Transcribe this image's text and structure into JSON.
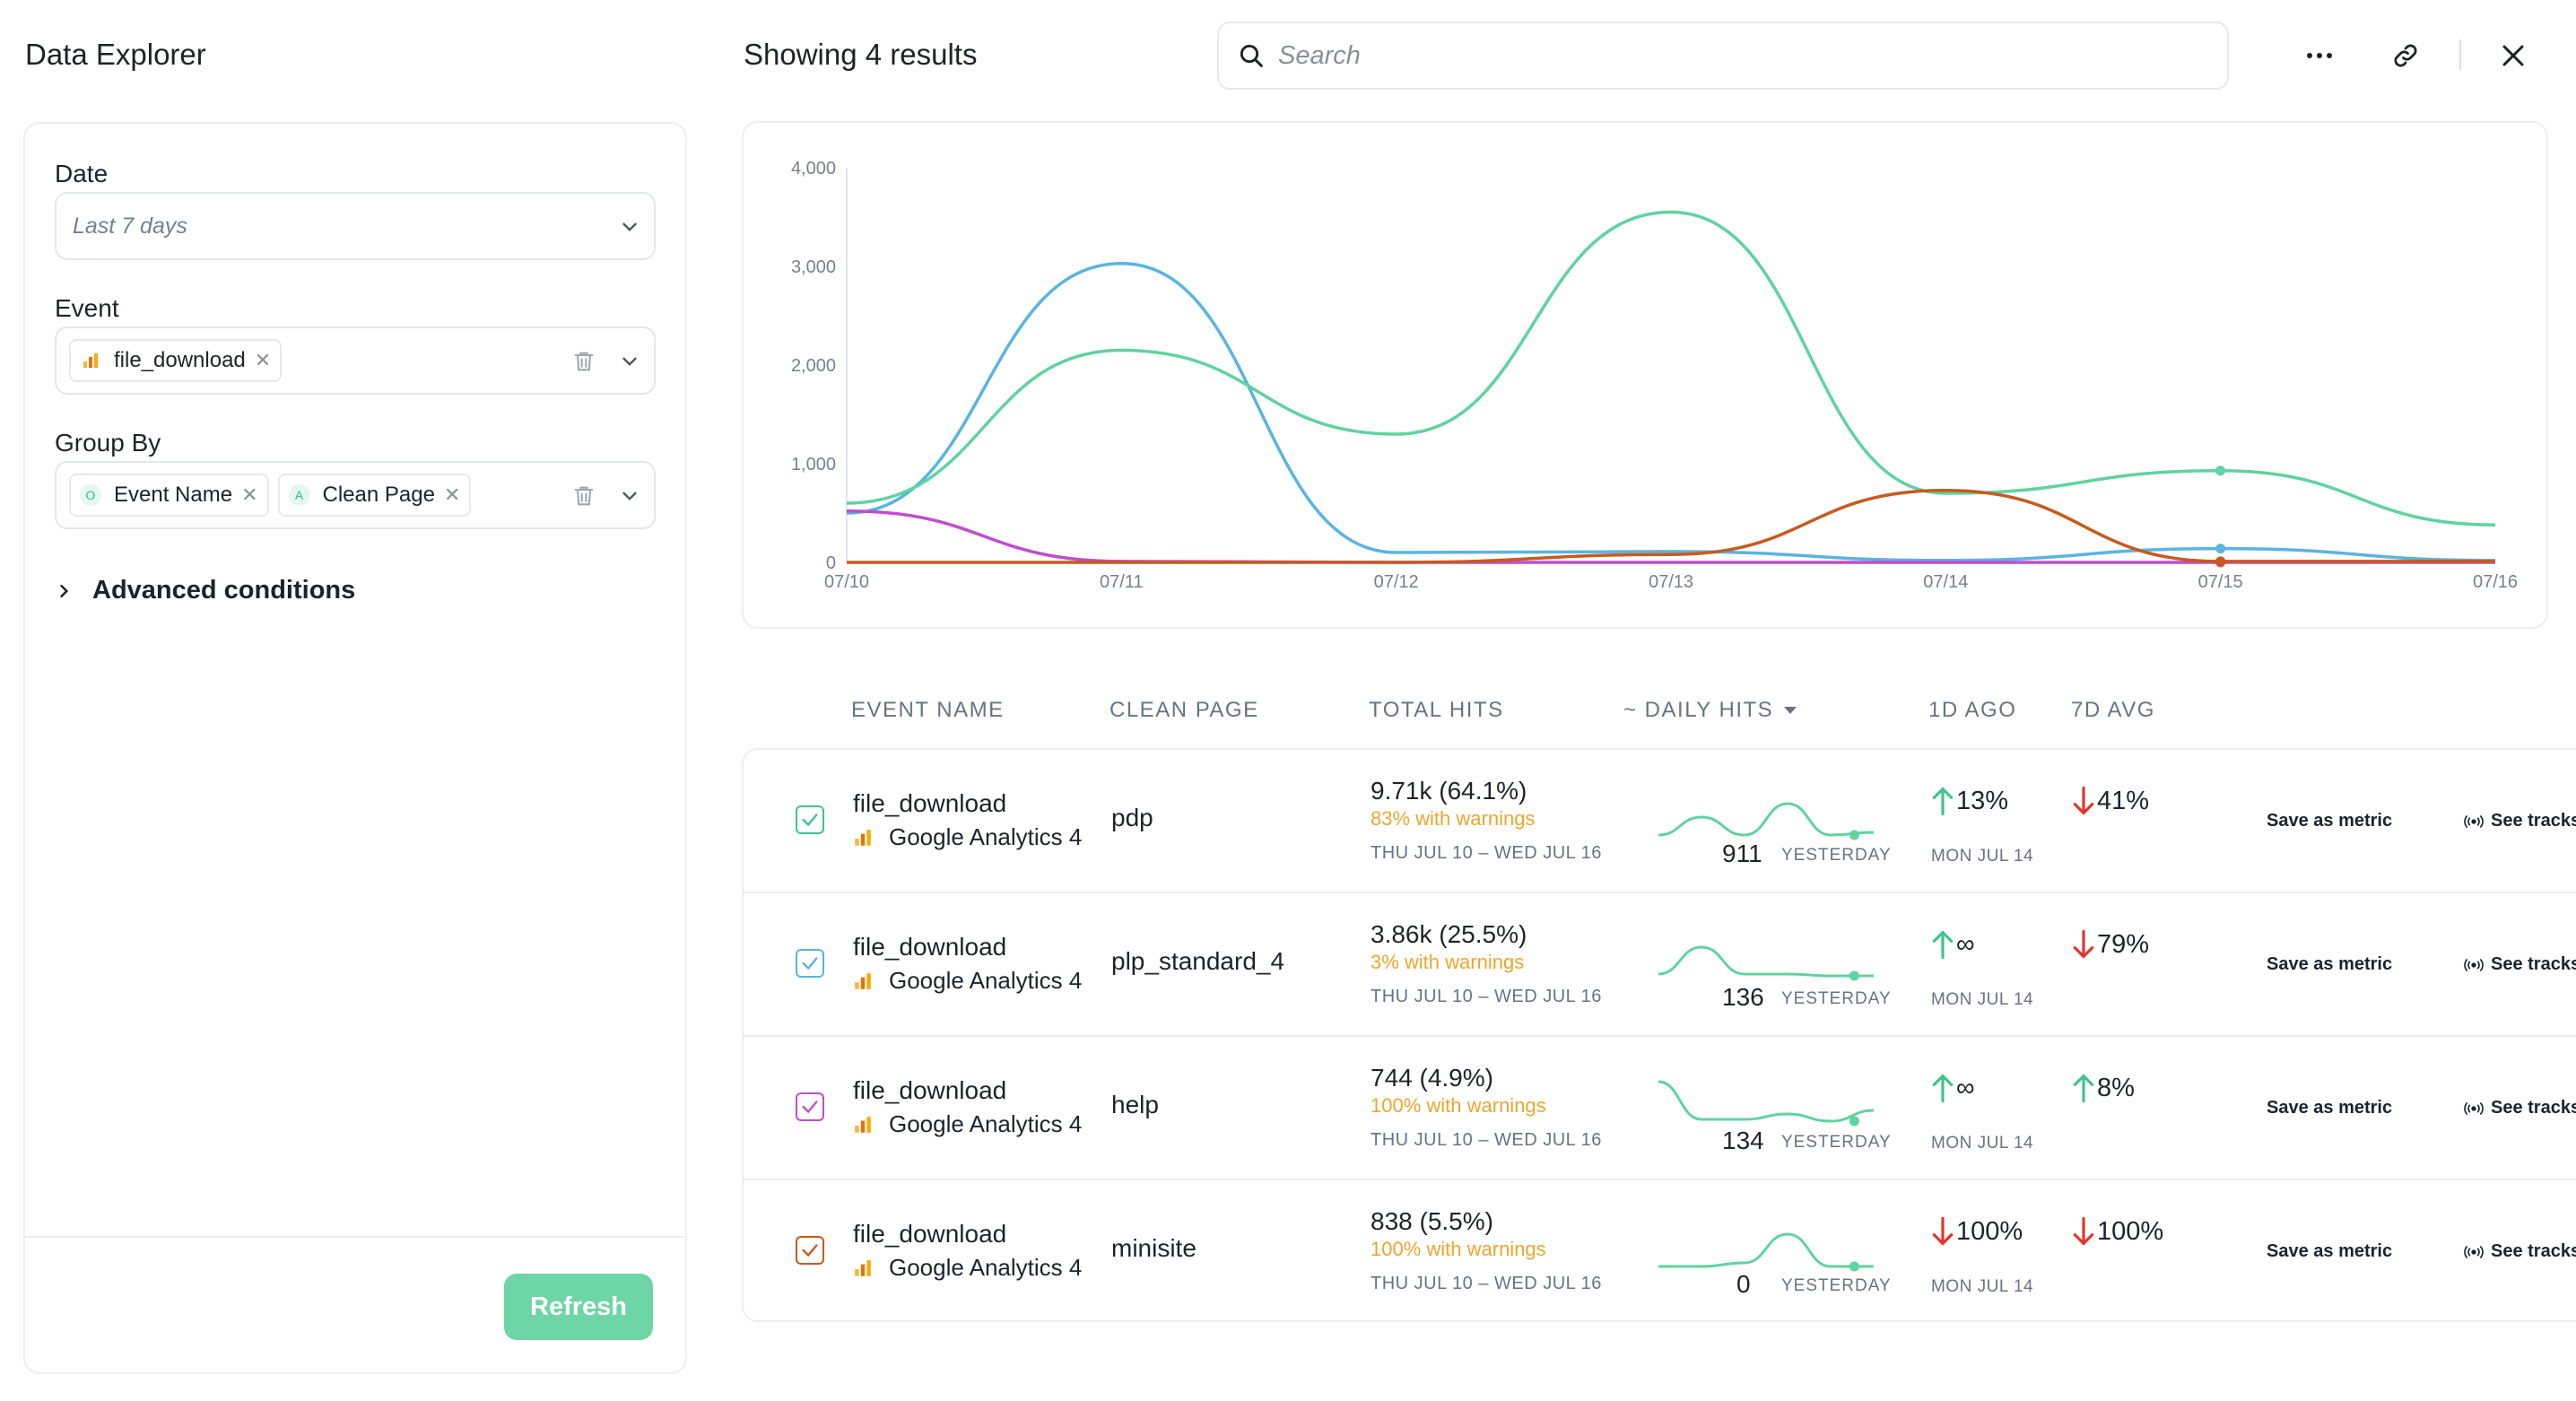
{
  "app": {
    "title": "Data Explorer"
  },
  "header": {
    "results": "Showing 4 results",
    "search_placeholder": "Search"
  },
  "filters": {
    "date": {
      "label": "Date",
      "placeholder": "Last 7 days"
    },
    "event": {
      "label": "Event",
      "chips": [
        "file_download"
      ]
    },
    "group_by": {
      "label": "Group By",
      "chips": [
        "Event Name",
        "Clean Page"
      ]
    },
    "advanced": "Advanced conditions",
    "refresh": "Refresh"
  },
  "colors": {
    "accent": "#6ed6a6",
    "series_blue": "#5ab4e0",
    "series_green": "#5fd3a0",
    "series_purple": "#c04dd0",
    "series_orange": "#c85a1e",
    "up": "#3cc48c",
    "down": "#e5332a",
    "warning": "#f0a52b"
  },
  "chart_data": {
    "type": "line",
    "x": [
      "07/10",
      "07/11",
      "07/12",
      "07/13",
      "07/14",
      "07/15",
      "07/16"
    ],
    "yticks": [
      "4,000",
      "3,000",
      "2,000",
      "1,000",
      "0"
    ],
    "ylim": [
      0,
      4000
    ],
    "grid": false,
    "series": [
      {
        "color": "#5ab4e0",
        "values": [
          500,
          3030,
          100,
          110,
          20,
          140,
          20
        ]
      },
      {
        "color": "#5fd3a0",
        "values": [
          600,
          2150,
          1300,
          3550,
          700,
          930,
          380
        ]
      },
      {
        "color": "#c04dd0",
        "values": [
          520,
          10,
          0,
          0,
          0,
          0,
          0
        ]
      },
      {
        "color": "#c85a1e",
        "values": [
          0,
          0,
          0,
          80,
          730,
          10,
          10
        ]
      }
    ]
  },
  "table": {
    "headers": {
      "event_name": "EVENT NAME",
      "clean_page": "CLEAN PAGE",
      "total_hits": "TOTAL HITS",
      "daily_hits": "~ DAILY HITS",
      "d1": "1D AGO",
      "d7": "7D AVG"
    },
    "rows": [
      {
        "event": "file_download",
        "source": "Google Analytics 4",
        "page": "pdp",
        "total": "9.71k (64.1%)",
        "warnings": "83% with warnings",
        "range": "THU JUL 10 – WED JUL 16",
        "yesterday": "911",
        "yesterday_label": "YESTERDAY",
        "d1": "13%",
        "d1_dir": "up",
        "d1_date": "MON JUL 14",
        "d7": "41%",
        "d7_dir": "down",
        "check_color": "#3cc48c",
        "spark_color": "#5fd3a0",
        "spark": [
          55,
          35,
          55,
          20,
          55,
          52
        ],
        "save": "Save as metric",
        "see": "See tracks"
      },
      {
        "event": "file_download",
        "source": "Google Analytics 4",
        "page": "plp_standard_4",
        "total": "3.86k (25.5%)",
        "warnings": "3% with warnings",
        "range": "THU JUL 10 – WED JUL 16",
        "yesterday": "136",
        "yesterday_label": "YESTERDAY",
        "d1": "∞",
        "d1_dir": "up",
        "d1_date": "MON JUL 14",
        "d7": "79%",
        "d7_dir": "down",
        "check_color": "#5ab4e0",
        "spark_color": "#5fd3a0",
        "spark": [
          50,
          20,
          50,
          50,
          52,
          52
        ],
        "save": "Save as metric",
        "see": "See tracks"
      },
      {
        "event": "file_download",
        "source": "Google Analytics 4",
        "page": "help",
        "total": "744 (4.9%)",
        "warnings": "100% with warnings",
        "range": "THU JUL 10 – WED JUL 16",
        "yesterday": "134",
        "yesterday_label": "YESTERDAY",
        "d1": "∞",
        "d1_dir": "up",
        "d1_date": "MON JUL 14",
        "d7": "8%",
        "d7_dir": "up",
        "check_color": "#c04dd0",
        "spark_color": "#5fd3a0",
        "spark": [
          10,
          52,
          52,
          46,
          54,
          42
        ],
        "save": "Save as metric",
        "see": "See tracks"
      },
      {
        "event": "file_download",
        "source": "Google Analytics 4",
        "page": "minisite",
        "total": "838 (5.5%)",
        "warnings": "100% with warnings",
        "range": "THU JUL 10 – WED JUL 16",
        "yesterday": "0",
        "yesterday_label": "YESTERDAY",
        "d1": "100%",
        "d1_dir": "down",
        "d1_date": "MON JUL 14",
        "d7": "100%",
        "d7_dir": "down",
        "check_color": "#c85a1e",
        "spark_color": "#5fd3a0",
        "spark": [
          56,
          56,
          52,
          20,
          56,
          56
        ],
        "save": "Save as metric",
        "see": "See tracks"
      }
    ]
  }
}
